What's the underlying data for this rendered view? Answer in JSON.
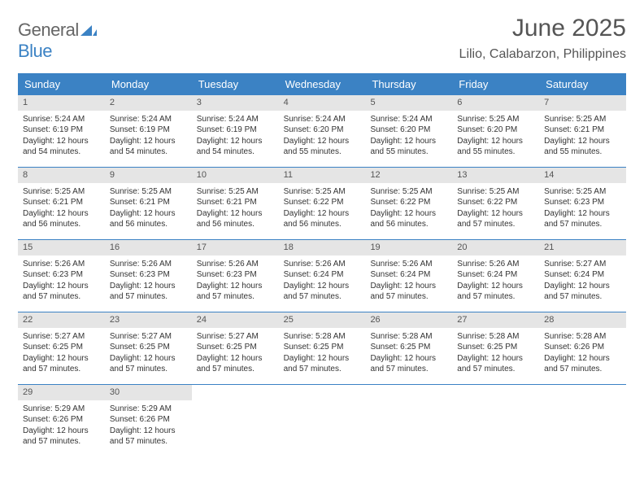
{
  "logo": {
    "line1": "General",
    "line2": "Blue",
    "icon_fill": "#3b82c4"
  },
  "title": "June 2025",
  "location": "Lilio, Calabarzon, Philippines",
  "colors": {
    "header_bg": "#3b82c4",
    "header_text": "#ffffff",
    "daynum_bg": "#e5e5e5",
    "row_border": "#3b82c4",
    "text": "#333333",
    "title_text": "#555555"
  },
  "weekdays": [
    "Sunday",
    "Monday",
    "Tuesday",
    "Wednesday",
    "Thursday",
    "Friday",
    "Saturday"
  ],
  "weeks": [
    [
      {
        "n": "1",
        "sr": "Sunrise: 5:24 AM",
        "ss": "Sunset: 6:19 PM",
        "d1": "Daylight: 12 hours",
        "d2": "and 54 minutes."
      },
      {
        "n": "2",
        "sr": "Sunrise: 5:24 AM",
        "ss": "Sunset: 6:19 PM",
        "d1": "Daylight: 12 hours",
        "d2": "and 54 minutes."
      },
      {
        "n": "3",
        "sr": "Sunrise: 5:24 AM",
        "ss": "Sunset: 6:19 PM",
        "d1": "Daylight: 12 hours",
        "d2": "and 54 minutes."
      },
      {
        "n": "4",
        "sr": "Sunrise: 5:24 AM",
        "ss": "Sunset: 6:20 PM",
        "d1": "Daylight: 12 hours",
        "d2": "and 55 minutes."
      },
      {
        "n": "5",
        "sr": "Sunrise: 5:24 AM",
        "ss": "Sunset: 6:20 PM",
        "d1": "Daylight: 12 hours",
        "d2": "and 55 minutes."
      },
      {
        "n": "6",
        "sr": "Sunrise: 5:25 AM",
        "ss": "Sunset: 6:20 PM",
        "d1": "Daylight: 12 hours",
        "d2": "and 55 minutes."
      },
      {
        "n": "7",
        "sr": "Sunrise: 5:25 AM",
        "ss": "Sunset: 6:21 PM",
        "d1": "Daylight: 12 hours",
        "d2": "and 55 minutes."
      }
    ],
    [
      {
        "n": "8",
        "sr": "Sunrise: 5:25 AM",
        "ss": "Sunset: 6:21 PM",
        "d1": "Daylight: 12 hours",
        "d2": "and 56 minutes."
      },
      {
        "n": "9",
        "sr": "Sunrise: 5:25 AM",
        "ss": "Sunset: 6:21 PM",
        "d1": "Daylight: 12 hours",
        "d2": "and 56 minutes."
      },
      {
        "n": "10",
        "sr": "Sunrise: 5:25 AM",
        "ss": "Sunset: 6:21 PM",
        "d1": "Daylight: 12 hours",
        "d2": "and 56 minutes."
      },
      {
        "n": "11",
        "sr": "Sunrise: 5:25 AM",
        "ss": "Sunset: 6:22 PM",
        "d1": "Daylight: 12 hours",
        "d2": "and 56 minutes."
      },
      {
        "n": "12",
        "sr": "Sunrise: 5:25 AM",
        "ss": "Sunset: 6:22 PM",
        "d1": "Daylight: 12 hours",
        "d2": "and 56 minutes."
      },
      {
        "n": "13",
        "sr": "Sunrise: 5:25 AM",
        "ss": "Sunset: 6:22 PM",
        "d1": "Daylight: 12 hours",
        "d2": "and 57 minutes."
      },
      {
        "n": "14",
        "sr": "Sunrise: 5:25 AM",
        "ss": "Sunset: 6:23 PM",
        "d1": "Daylight: 12 hours",
        "d2": "and 57 minutes."
      }
    ],
    [
      {
        "n": "15",
        "sr": "Sunrise: 5:26 AM",
        "ss": "Sunset: 6:23 PM",
        "d1": "Daylight: 12 hours",
        "d2": "and 57 minutes."
      },
      {
        "n": "16",
        "sr": "Sunrise: 5:26 AM",
        "ss": "Sunset: 6:23 PM",
        "d1": "Daylight: 12 hours",
        "d2": "and 57 minutes."
      },
      {
        "n": "17",
        "sr": "Sunrise: 5:26 AM",
        "ss": "Sunset: 6:23 PM",
        "d1": "Daylight: 12 hours",
        "d2": "and 57 minutes."
      },
      {
        "n": "18",
        "sr": "Sunrise: 5:26 AM",
        "ss": "Sunset: 6:24 PM",
        "d1": "Daylight: 12 hours",
        "d2": "and 57 minutes."
      },
      {
        "n": "19",
        "sr": "Sunrise: 5:26 AM",
        "ss": "Sunset: 6:24 PM",
        "d1": "Daylight: 12 hours",
        "d2": "and 57 minutes."
      },
      {
        "n": "20",
        "sr": "Sunrise: 5:26 AM",
        "ss": "Sunset: 6:24 PM",
        "d1": "Daylight: 12 hours",
        "d2": "and 57 minutes."
      },
      {
        "n": "21",
        "sr": "Sunrise: 5:27 AM",
        "ss": "Sunset: 6:24 PM",
        "d1": "Daylight: 12 hours",
        "d2": "and 57 minutes."
      }
    ],
    [
      {
        "n": "22",
        "sr": "Sunrise: 5:27 AM",
        "ss": "Sunset: 6:25 PM",
        "d1": "Daylight: 12 hours",
        "d2": "and 57 minutes."
      },
      {
        "n": "23",
        "sr": "Sunrise: 5:27 AM",
        "ss": "Sunset: 6:25 PM",
        "d1": "Daylight: 12 hours",
        "d2": "and 57 minutes."
      },
      {
        "n": "24",
        "sr": "Sunrise: 5:27 AM",
        "ss": "Sunset: 6:25 PM",
        "d1": "Daylight: 12 hours",
        "d2": "and 57 minutes."
      },
      {
        "n": "25",
        "sr": "Sunrise: 5:28 AM",
        "ss": "Sunset: 6:25 PM",
        "d1": "Daylight: 12 hours",
        "d2": "and 57 minutes."
      },
      {
        "n": "26",
        "sr": "Sunrise: 5:28 AM",
        "ss": "Sunset: 6:25 PM",
        "d1": "Daylight: 12 hours",
        "d2": "and 57 minutes."
      },
      {
        "n": "27",
        "sr": "Sunrise: 5:28 AM",
        "ss": "Sunset: 6:25 PM",
        "d1": "Daylight: 12 hours",
        "d2": "and 57 minutes."
      },
      {
        "n": "28",
        "sr": "Sunrise: 5:28 AM",
        "ss": "Sunset: 6:26 PM",
        "d1": "Daylight: 12 hours",
        "d2": "and 57 minutes."
      }
    ],
    [
      {
        "n": "29",
        "sr": "Sunrise: 5:29 AM",
        "ss": "Sunset: 6:26 PM",
        "d1": "Daylight: 12 hours",
        "d2": "and 57 minutes."
      },
      {
        "n": "30",
        "sr": "Sunrise: 5:29 AM",
        "ss": "Sunset: 6:26 PM",
        "d1": "Daylight: 12 hours",
        "d2": "and 57 minutes."
      },
      null,
      null,
      null,
      null,
      null
    ]
  ]
}
